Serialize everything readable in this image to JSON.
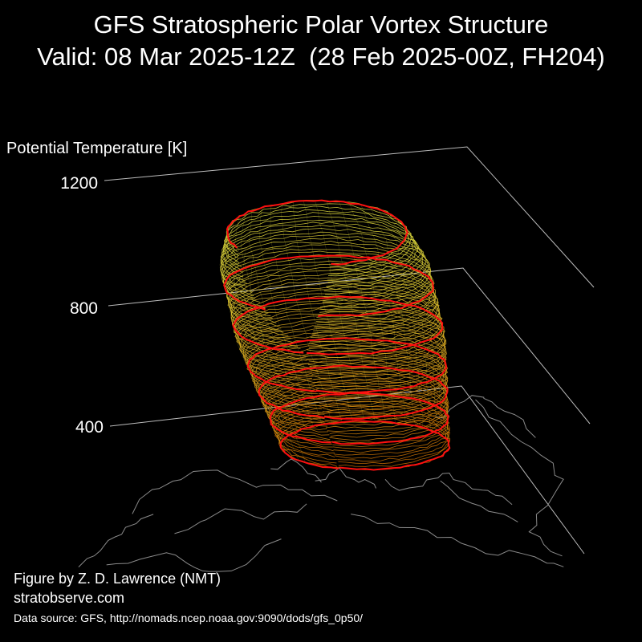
{
  "header": {
    "title_line1": "GFS Stratospheric Polar Vortex Structure",
    "title_line2": "Valid: 08 Mar 2025-12Z  (28 Feb 2025-00Z, FH204)"
  },
  "chart_data": {
    "type": "3d-isentropic-vortex",
    "title": "GFS Stratospheric Polar Vortex Structure",
    "subtitle": "Valid: 08 Mar 2025-12Z  (28 Feb 2025-00Z, FH204)",
    "zlabel": "Potential Temperature [K]",
    "z_ticks": [
      400,
      800,
      1200
    ],
    "zlim": [
      300,
      1200
    ],
    "grid": true,
    "colors": {
      "background": "#000000",
      "grid": "#bbbbbb",
      "coastline": "#8a8a8a",
      "vortex_low": "#d07000",
      "vortex_high": "#e0e040",
      "highlight_contours": "#ff1010"
    },
    "highlighted_levels": [
      400,
      500,
      600,
      700,
      850,
      1000,
      1200
    ]
  },
  "footer": {
    "credit": "Figure by Z. D. Lawrence (NMT)",
    "website": "stratobserve.com",
    "source": "Data source: GFS, http://nomads.ncep.noaa.gov:9090/dods/gfs_0p50/"
  }
}
